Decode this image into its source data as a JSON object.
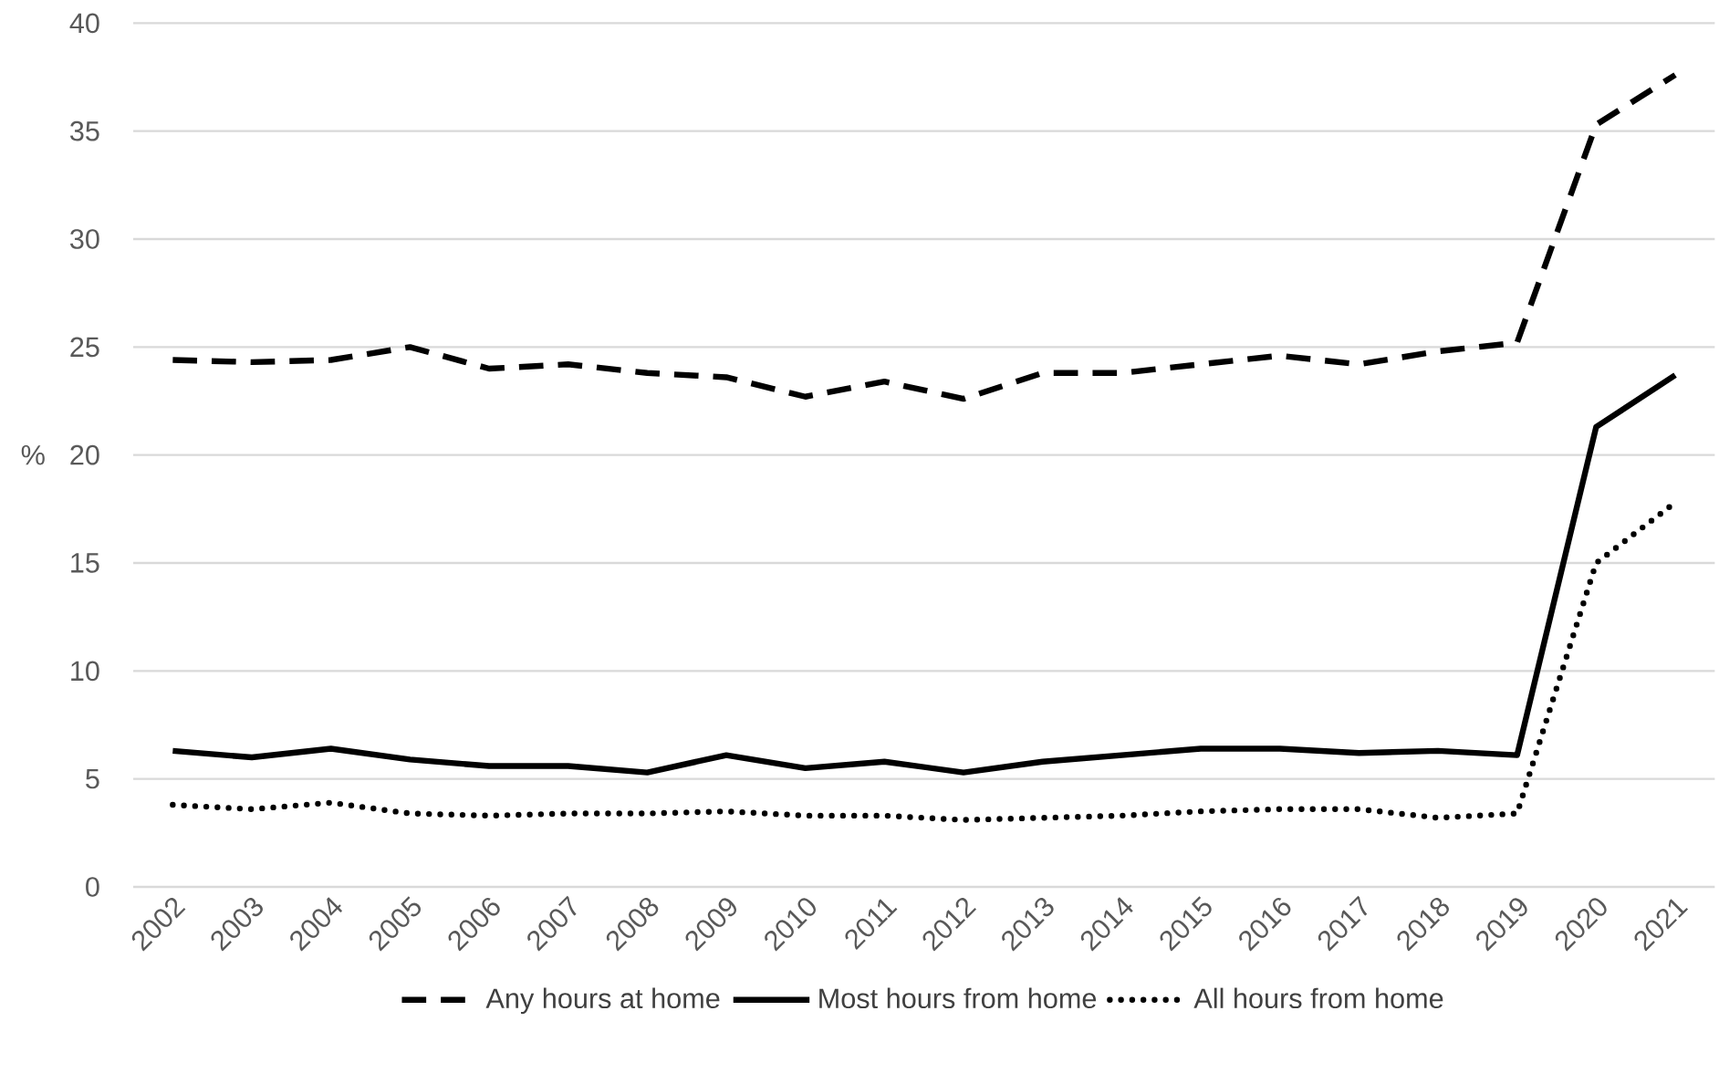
{
  "chart_data": {
    "type": "line",
    "ylabel": "%",
    "categories": [
      "2002",
      "2003",
      "2004",
      "2005",
      "2006",
      "2007",
      "2008",
      "2009",
      "2010",
      "2011",
      "2012",
      "2013",
      "2014",
      "2015",
      "2016",
      "2017",
      "2018",
      "2019",
      "2020",
      "2021"
    ],
    "series": [
      {
        "name": "Any hours at home",
        "color": "#000000",
        "line_style": "dashed",
        "values": [
          24.4,
          24.3,
          24.4,
          25.0,
          24.0,
          24.2,
          23.8,
          23.6,
          22.7,
          23.4,
          22.6,
          23.8,
          23.8,
          24.2,
          24.6,
          24.2,
          24.8,
          25.2,
          35.3,
          37.6
        ]
      },
      {
        "name": "Most hours from home",
        "color": "#000000",
        "line_style": "solid",
        "values": [
          6.3,
          6.0,
          6.4,
          5.9,
          5.6,
          5.6,
          5.3,
          6.1,
          5.5,
          5.8,
          5.3,
          5.8,
          6.1,
          6.4,
          6.4,
          6.2,
          6.3,
          6.1,
          21.3,
          23.7
        ]
      },
      {
        "name": "All hours from home",
        "color": "#000000",
        "line_style": "dotted",
        "values": [
          3.8,
          3.6,
          3.9,
          3.4,
          3.3,
          3.4,
          3.4,
          3.5,
          3.3,
          3.3,
          3.1,
          3.2,
          3.3,
          3.5,
          3.6,
          3.6,
          3.2,
          3.4,
          15.0,
          17.8
        ]
      }
    ],
    "ylim": [
      0,
      40
    ],
    "yticks": [
      0,
      5,
      10,
      15,
      20,
      25,
      30,
      35,
      40
    ],
    "grid": "y",
    "legend": "bottom",
    "marker": "none"
  }
}
